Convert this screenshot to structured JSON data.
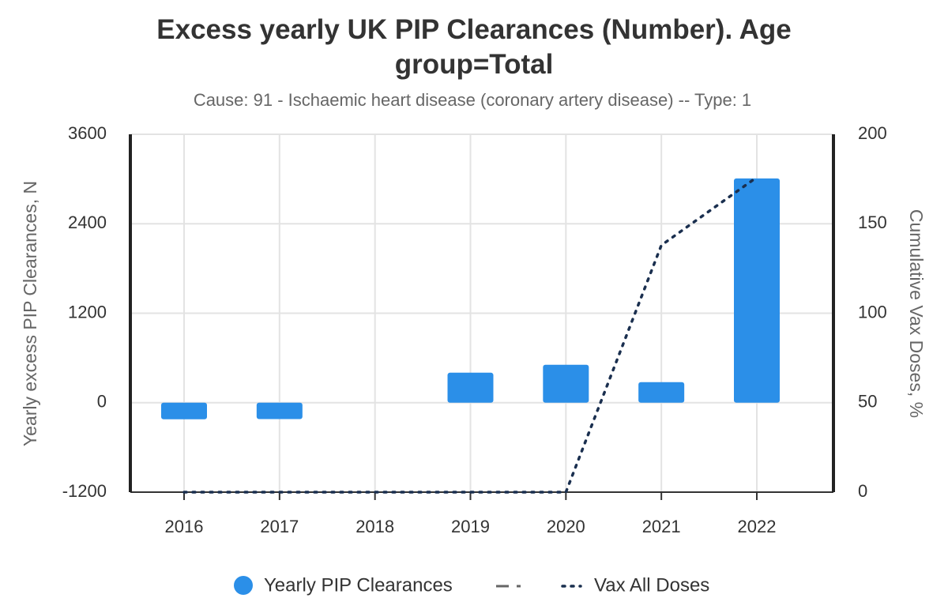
{
  "chart_data": {
    "type": "bar",
    "title": "Excess yearly UK PIP Clearances (Number). Age group=Total",
    "subtitle": "Cause: 91 - Ischaemic heart disease (coronary artery disease) -- Type: 1",
    "y_label": "Yearly excess PIP Clearances, N",
    "y2_label": "Cumulative Vax Doses, %",
    "categories": [
      "2016",
      "2017",
      "2018",
      "2019",
      "2020",
      "2021",
      "2022"
    ],
    "series": [
      {
        "name": "Yearly PIP Clearances",
        "type": "bar",
        "color": "#2b8fe8",
        "values": [
          -222,
          -220,
          0,
          402,
          508,
          275,
          3008
        ]
      },
      {
        "name": "Vax All Doses",
        "type": "line",
        "axis": "y2",
        "color": "#1a2f4f",
        "values": [
          0,
          0,
          0,
          0,
          0,
          138,
          176
        ]
      }
    ],
    "ylim": [
      -1200,
      3600
    ],
    "yticks": [
      -1200,
      0,
      1200,
      2400,
      3600
    ],
    "y2lim": [
      0,
      200
    ],
    "y2ticks": [
      0,
      50,
      100,
      150,
      200
    ],
    "grid": true
  }
}
